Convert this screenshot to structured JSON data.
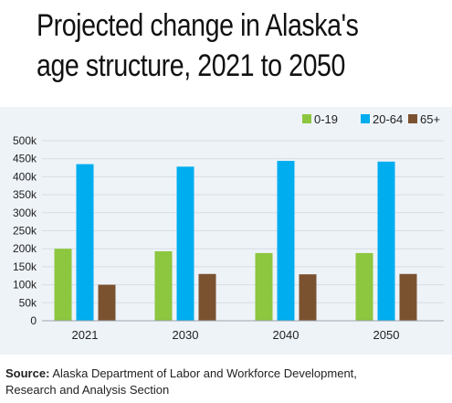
{
  "title_lines": [
    "Projected change in Alaska's",
    "age structure, 2021 to 2050"
  ],
  "source": {
    "label": "Source:",
    "text_line1": "Alaska Department of Labor and Workforce Development,",
    "text_line2": "Research and Analysis Section"
  },
  "chart_data": {
    "type": "bar",
    "categories": [
      "2021",
      "2030",
      "2040",
      "2050"
    ],
    "series": [
      {
        "name": "0-19",
        "color": "#8dc63f",
        "values": [
          200000,
          193000,
          188000,
          188000
        ]
      },
      {
        "name": "20-64",
        "color": "#00aeef",
        "values": [
          435000,
          428000,
          444000,
          442000
        ]
      },
      {
        "name": "65+",
        "color": "#7b5230",
        "values": [
          100000,
          130000,
          129000,
          130000
        ]
      }
    ],
    "yticks": [
      "0",
      "50k",
      "100k",
      "150k",
      "200k",
      "250k",
      "300k",
      "350k",
      "400k",
      "450k",
      "500k"
    ],
    "ylim": [
      0,
      500000
    ],
    "grid": true,
    "legend_position": "top-right"
  }
}
